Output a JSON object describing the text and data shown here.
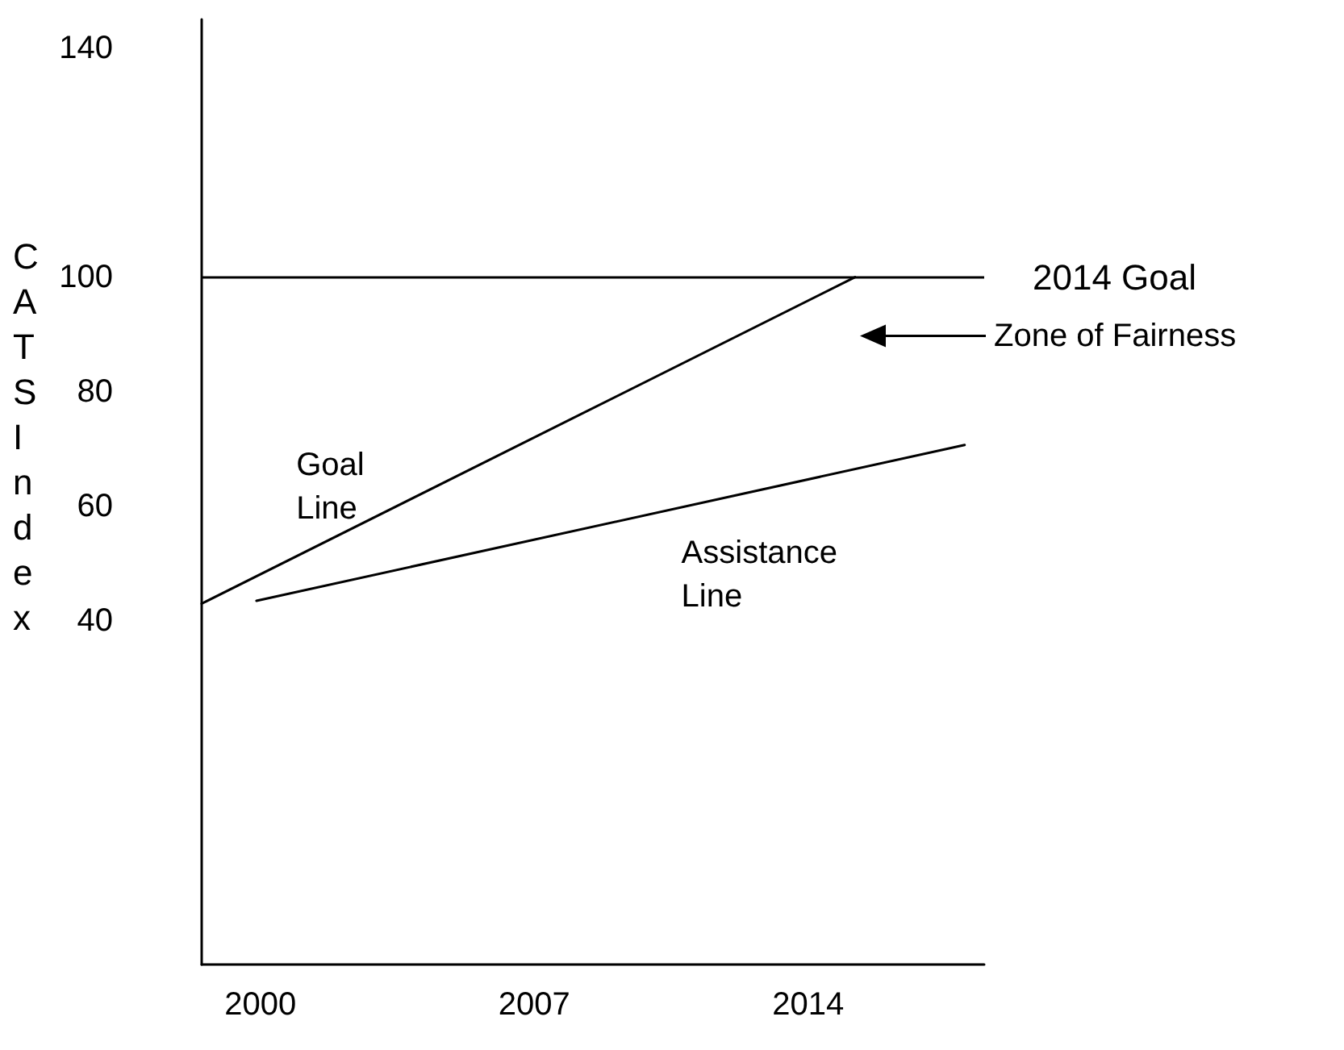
{
  "chart_data": {
    "type": "line",
    "ylabel": "CATS Index",
    "xlim": [
      1998.5,
      2018.5
    ],
    "xticks": [
      2000,
      2007,
      2014
    ],
    "ylim": [
      -20,
      145
    ],
    "yticks": [
      40,
      60,
      80,
      100,
      140
    ],
    "grid": false,
    "legend": false,
    "marker": "none",
    "line_style": "solid",
    "series": [
      {
        "name": "Goal Line",
        "color": "#000000",
        "x": [
          1998.5,
          2015.2
        ],
        "values": [
          43,
          100
        ]
      },
      {
        "name": "Assistance Line",
        "color": "#000000",
        "x": [
          1999.9,
          2018
        ],
        "values": [
          43.5,
          70.7
        ]
      }
    ],
    "ref_lines": [
      {
        "axis": "y",
        "value": 100,
        "label": "2014 Goal",
        "color": "#000000"
      }
    ],
    "annotations": [
      "Zone of Fairness"
    ]
  }
}
